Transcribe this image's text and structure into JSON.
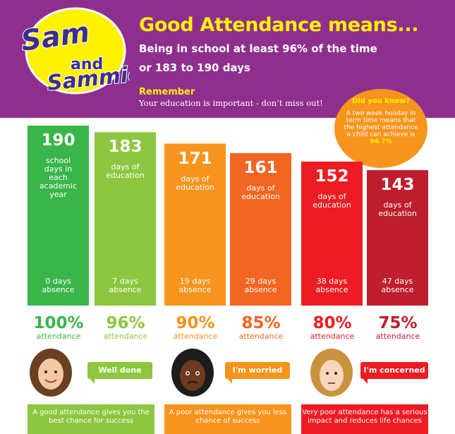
{
  "header": {
    "logo_text": [
      "Sam",
      "and",
      "Sammie"
    ],
    "title": "Good Attendance means...",
    "subtitle_line1": "Being in school at least 96% of the time",
    "subtitle_line2": "or 183 to 190 days",
    "remember_label": "Remember",
    "remember_text": "Your education is important - don’t miss out!"
  },
  "did_you_know": {
    "title": "Did you know?",
    "body": "A two week holiday in term time means that the highest attendance a child can achieve is",
    "value": "94.7%"
  },
  "chart_data": {
    "type": "bar",
    "categories": [
      "100% attendance",
      "96% attendance",
      "90% attendance",
      "85% attendance",
      "80% attendance",
      "75% attendance"
    ],
    "values": [
      190,
      183,
      171,
      161,
      152,
      143
    ],
    "ylim": [
      0,
      190
    ],
    "colors": [
      "#39b54a",
      "#8dc63f",
      "#f7941d",
      "#f26522",
      "#ed1c24",
      "#be1e2d"
    ],
    "bars": [
      {
        "value": "190",
        "caption": "school days in each academic year",
        "absence_line1": "0 days",
        "absence_line2": "absence"
      },
      {
        "value": "183",
        "caption": "days of education",
        "absence_line1": "7 days",
        "absence_line2": "absence"
      },
      {
        "value": "171",
        "caption": "days of education",
        "absence_line1": "19 days",
        "absence_line2": "absence"
      },
      {
        "value": "161",
        "caption": "days of education",
        "absence_line1": "29 days",
        "absence_line2": "absence"
      },
      {
        "value": "152",
        "caption": "days of education",
        "absence_line1": "38 days",
        "absence_line2": "absence"
      },
      {
        "value": "143",
        "caption": "days of education",
        "absence_line1": "47 days",
        "absence_line2": "absence"
      }
    ]
  },
  "percentages": [
    {
      "value": "100%",
      "label": "attendance",
      "color": "#39b54a"
    },
    {
      "value": "96%",
      "label": "attendance",
      "color": "#8dc63f"
    },
    {
      "value": "90%",
      "label": "attendance",
      "color": "#f7941d"
    },
    {
      "value": "85%",
      "label": "attendance",
      "color": "#f26522"
    },
    {
      "value": "80%",
      "label": "attendance",
      "color": "#ed1c24"
    },
    {
      "value": "75%",
      "label": "attendance",
      "color": "#be1e2d"
    }
  ],
  "feedback": [
    {
      "bubble": "Well done",
      "color": "#8dc63f",
      "message": "A good attendance gives you the best chance for success"
    },
    {
      "bubble": "I'm worried",
      "color": "#f7941d",
      "message": "A poor attendance gives you less chance of success"
    },
    {
      "bubble": "I'm concerned",
      "color": "#ed1c24",
      "message": "Very poor attendance has a serious impact and reduces life chances"
    }
  ]
}
